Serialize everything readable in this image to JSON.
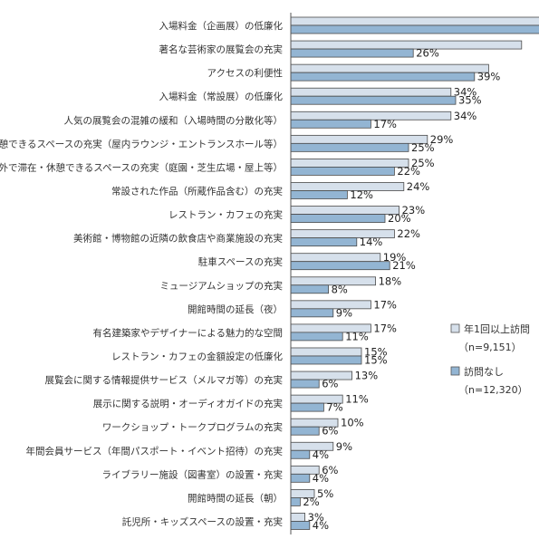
{
  "chart_data": {
    "type": "bar",
    "orientation": "horizontal",
    "categories": [
      "入場料金（企画展）の低廉化",
      "著名な芸術家の展覧会の充実",
      "アクセスの利便性",
      "入場料金（常設展）の低廉化",
      "人気の展覧会の混雑の緩和（入場時間の分散化等）",
      "館内で滞在・休憩できるスペースの充実（屋内ラウンジ・エントランスホール等）",
      "屋外で滞在・休憩できるスペースの充実（庭園・芝生広場・屋上等）",
      "常設された作品（所蔵作品含む）の充実",
      "レストラン・カフェの充実",
      "美術館・博物館の近隣の飲食店や商業施設の充実",
      "駐車スペースの充実",
      "ミュージアムショップの充実",
      "開館時間の延長（夜）",
      "有名建築家やデザイナーによる魅力的な空間",
      "レストラン・カフェの金額設定の低廉化",
      "展覧会に関する情報提供サービス（メルマガ等）の充実",
      "展示に関する説明・オーディオガイドの充実",
      "ワークショップ・トークプログラムの充実",
      "年間会員サービス（年間パスポート・イベント招待）の充実",
      "ライブラリー施設（図書室）の設置・充実",
      "開館時間の延長（朝）",
      "託児所・キッズスペースの設置・充実"
    ],
    "series": [
      {
        "name": "年1回以上訪問",
        "name_note": "（n=9,151）",
        "color": "#d6e0eb",
        "values": [
          54,
          49,
          42,
          34,
          34,
          29,
          25,
          24,
          23,
          22,
          19,
          18,
          17,
          17,
          15,
          13,
          11,
          10,
          9,
          6,
          5,
          3
        ]
      },
      {
        "name": "訪問なし",
        "name_note": "（n=12,320）",
        "color": "#93b5d3",
        "values": [
          58,
          26,
          39,
          35,
          17,
          25,
          22,
          12,
          20,
          14,
          21,
          8,
          9,
          11,
          15,
          6,
          7,
          6,
          4,
          4,
          2,
          4
        ]
      }
    ],
    "value_labels": [
      [
        "",
        ""
      ],
      [
        "",
        "26%"
      ],
      [
        "",
        "39%"
      ],
      [
        "34%",
        "35%"
      ],
      [
        "34%",
        "17%"
      ],
      [
        "29%",
        "25%"
      ],
      [
        "25%",
        "22%"
      ],
      [
        "24%",
        "12%"
      ],
      [
        "23%",
        "20%"
      ],
      [
        "22%",
        "14%"
      ],
      [
        "19%",
        "21%"
      ],
      [
        "18%",
        "8%"
      ],
      [
        "17%",
        "9%"
      ],
      [
        "17%",
        "11%"
      ],
      [
        "15%",
        "15%"
      ],
      [
        "13%",
        "6%"
      ],
      [
        "11%",
        "7%"
      ],
      [
        "10%",
        "6%"
      ],
      [
        "9%",
        "4%"
      ],
      [
        "6%",
        "4%"
      ],
      [
        "5%",
        "2%"
      ],
      [
        "3%",
        "4%"
      ]
    ],
    "xlim": [
      0,
      60
    ],
    "grid": false,
    "legend_position": "right"
  }
}
